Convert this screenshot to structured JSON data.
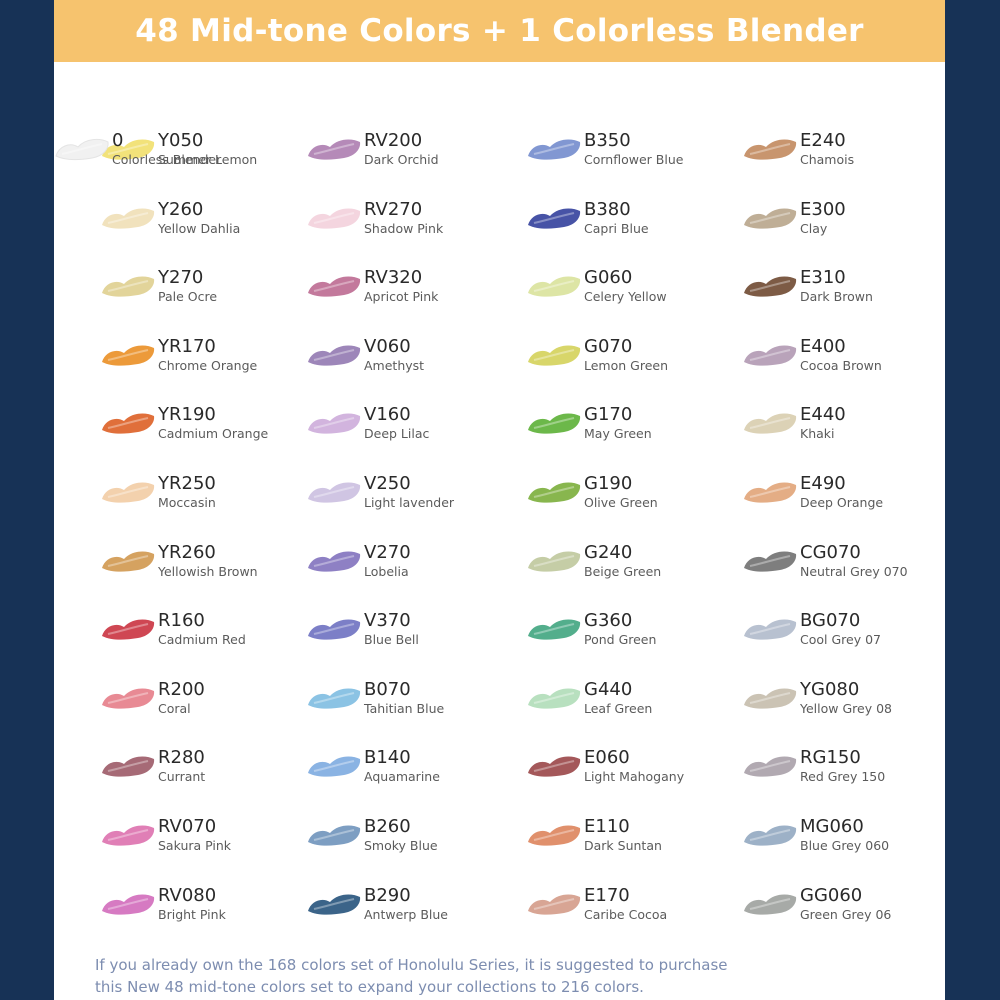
{
  "title": "48 Mid-tone Colors + 1 Colorless Blender",
  "colors": [
    {
      "code": "Y050",
      "name": "Summer Lemon",
      "hex": "#f2e27a"
    },
    {
      "code": "Y260",
      "name": "Yellow Dahlia",
      "hex": "#f1e2bd"
    },
    {
      "code": "Y270",
      "name": "Pale Ocre",
      "hex": "#e2d49a"
    },
    {
      "code": "YR170",
      "name": "Chrome Orange",
      "hex": "#ec9a3a"
    },
    {
      "code": "YR190",
      "name": "Cadmium Orange",
      "hex": "#e06f3a"
    },
    {
      "code": "YR250",
      "name": "Moccasin",
      "hex": "#f3d1ad"
    },
    {
      "code": "YR260",
      "name": "Yellowish Brown",
      "hex": "#d5a260"
    },
    {
      "code": "R160",
      "name": "Cadmium Red",
      "hex": "#cf4753"
    },
    {
      "code": "R200",
      "name": "Coral",
      "hex": "#e88a94"
    },
    {
      "code": "R280",
      "name": "Currant",
      "hex": "#a66a76"
    },
    {
      "code": "RV070",
      "name": "Sakura Pink",
      "hex": "#e07fb6"
    },
    {
      "code": "RV080",
      "name": "Bright Pink",
      "hex": "#d67ac2"
    },
    {
      "code": "RV200",
      "name": "Dark Orchid",
      "hex": "#b58ab8"
    },
    {
      "code": "RV270",
      "name": "Shadow Pink",
      "hex": "#f4d5df"
    },
    {
      "code": "RV320",
      "name": "Apricot Pink",
      "hex": "#c3799c"
    },
    {
      "code": "V060",
      "name": "Amethyst",
      "hex": "#9d86b9"
    },
    {
      "code": "V160",
      "name": "Deep Lilac",
      "hex": "#d2b4de"
    },
    {
      "code": "V250",
      "name": "Light lavender",
      "hex": "#d0c5e3"
    },
    {
      "code": "V270",
      "name": "Lobelia",
      "hex": "#8e80c4"
    },
    {
      "code": "V370",
      "name": "Blue Bell",
      "hex": "#7c7fc7"
    },
    {
      "code": "B070",
      "name": "Tahitian Blue",
      "hex": "#8bc3e4"
    },
    {
      "code": "B140",
      "name": "Aquamarine",
      "hex": "#8ab3e3"
    },
    {
      "code": "B260",
      "name": "Smoky Blue",
      "hex": "#7d9ec2"
    },
    {
      "code": "B290",
      "name": "Antwerp Blue",
      "hex": "#3b6489"
    },
    {
      "code": "B350",
      "name": "Cornflower Blue",
      "hex": "#8197d2"
    },
    {
      "code": "B380",
      "name": "Capri Blue",
      "hex": "#4753a6"
    },
    {
      "code": "G060",
      "name": "Celery Yellow",
      "hex": "#dde5a5"
    },
    {
      "code": "G070",
      "name": "Lemon Green",
      "hex": "#d8d66a"
    },
    {
      "code": "G170",
      "name": "May Green",
      "hex": "#6cb84a"
    },
    {
      "code": "G190",
      "name": "Olive Green",
      "hex": "#88b64e"
    },
    {
      "code": "G240",
      "name": "Beige Green",
      "hex": "#c5cda6"
    },
    {
      "code": "G360",
      "name": "Pond Green",
      "hex": "#53ae8c"
    },
    {
      "code": "G440",
      "name": "Leaf Green",
      "hex": "#b8e0bf"
    },
    {
      "code": "E060",
      "name": "Light Mahogany",
      "hex": "#a4585a"
    },
    {
      "code": "E110",
      "name": "Dark Suntan",
      "hex": "#e0906c"
    },
    {
      "code": "E170",
      "name": "Caribe Cocoa",
      "hex": "#d8a594"
    },
    {
      "code": "E240",
      "name": "Chamois",
      "hex": "#c8956e"
    },
    {
      "code": "E300",
      "name": "Clay",
      "hex": "#bfae96"
    },
    {
      "code": "E310",
      "name": "Dark Brown",
      "hex": "#7d5b45"
    },
    {
      "code": "E400",
      "name": "Cocoa Brown",
      "hex": "#b9a3ba"
    },
    {
      "code": "E440",
      "name": "Khaki",
      "hex": "#dcd2b6"
    },
    {
      "code": "E490",
      "name": "Deep Orange",
      "hex": "#e4ad85"
    },
    {
      "code": "CG070",
      "name": "Neutral Grey 070",
      "hex": "#7e7e7e"
    },
    {
      "code": "BG070",
      "name": "Cool Grey 07",
      "hex": "#b8c1d0"
    },
    {
      "code": "YG080",
      "name": "Yellow Grey 08",
      "hex": "#cbc3b4"
    },
    {
      "code": "RG150",
      "name": "Red Grey 150",
      "hex": "#b1a9b1"
    },
    {
      "code": "MG060",
      "name": "Blue Grey 060",
      "hex": "#9db1c7"
    },
    {
      "code": "GG060",
      "name": "Green Grey 06",
      "hex": "#a7aaa7"
    },
    {
      "code": "0",
      "name": "Colorless Blender",
      "hex": "#f1f1f1"
    }
  ],
  "footer": {
    "line1": "If you already own the 168 colors set of Honolulu Series, it is suggested to purchase",
    "line2": "this New 48 mid-tone colors set to expand your collections to 216 colors."
  }
}
